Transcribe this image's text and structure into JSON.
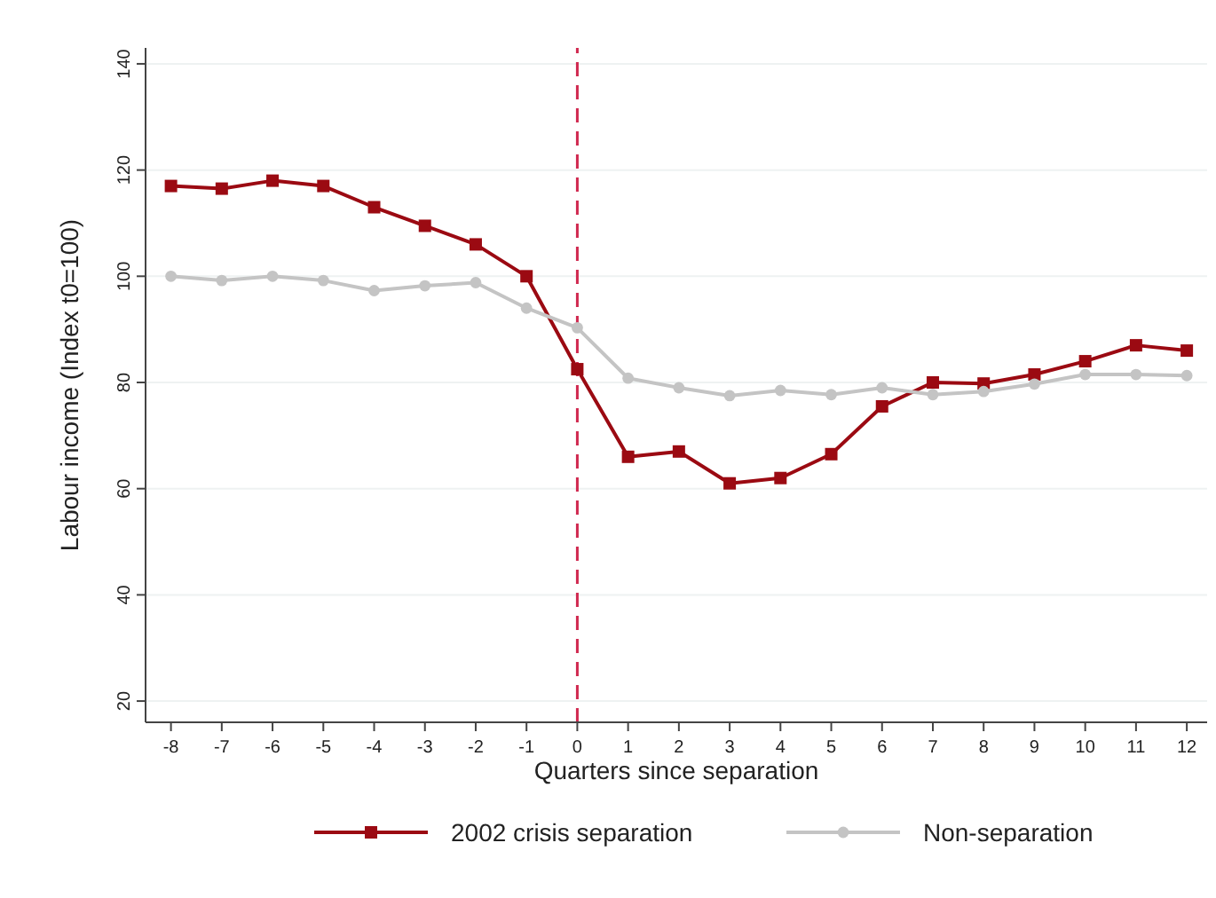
{
  "chart_data": {
    "type": "line",
    "xlabel": "Quarters since separation",
    "ylabel": "Labour income (Index t0=100)",
    "x": [
      -8,
      -7,
      -6,
      -5,
      -4,
      -3,
      -2,
      -1,
      0,
      1,
      2,
      3,
      4,
      5,
      6,
      7,
      8,
      9,
      10,
      11,
      12
    ],
    "series": [
      {
        "name": "2002 crisis separation",
        "color": "#9b0a12",
        "marker": "square",
        "values": [
          117,
          116.5,
          118,
          117,
          113,
          109.5,
          106,
          100,
          82.5,
          66,
          67,
          61,
          62,
          66.5,
          75.5,
          80,
          79.8,
          81.5,
          84,
          87,
          86
        ]
      },
      {
        "name": "Non-separation",
        "color": "#c4c4c4",
        "marker": "circle",
        "values": [
          100,
          99.2,
          100,
          99.2,
          97.3,
          98.2,
          98.8,
          94,
          90.3,
          80.8,
          79,
          77.5,
          78.5,
          77.7,
          79,
          77.7,
          78.3,
          79.7,
          81.5,
          81.5,
          81.3
        ]
      }
    ],
    "xlim": [
      -8.5,
      12.4
    ],
    "ylim": [
      16,
      143
    ],
    "xticks": [
      -8,
      -7,
      -6,
      -5,
      -4,
      -3,
      -2,
      -1,
      0,
      1,
      2,
      3,
      4,
      5,
      6,
      7,
      8,
      9,
      10,
      11,
      12
    ],
    "yticks": [
      20,
      40,
      60,
      80,
      100,
      120,
      140
    ],
    "ref_lines": [
      {
        "axis": "x",
        "value": 0,
        "color": "#d0284f",
        "line_style": "dashed"
      }
    ],
    "grid": "y",
    "legend": "bottom",
    "line_style": "solid"
  }
}
